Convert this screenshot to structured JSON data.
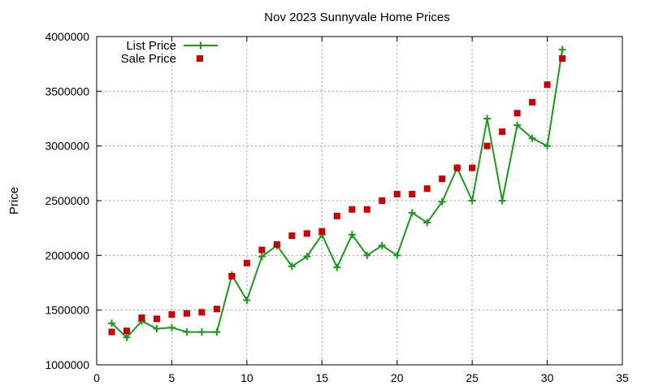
{
  "chart_data": {
    "type": "line",
    "title": "Nov 2023 Sunnyvale Home Prices",
    "xlabel": "",
    "ylabel": "Price",
    "xlim": [
      0,
      35
    ],
    "ylim": [
      1000000,
      4000000
    ],
    "xticks": [
      0,
      5,
      10,
      15,
      20,
      25,
      30,
      35
    ],
    "yticks": [
      1000000,
      1500000,
      2000000,
      2500000,
      3000000,
      3500000,
      4000000
    ],
    "grid": true,
    "legend_position": "top-left",
    "series": [
      {
        "name": "List Price",
        "style": "line+plus-marker",
        "color": "#1a9a1a",
        "x": [
          1,
          2,
          3,
          4,
          5,
          6,
          7,
          8,
          9,
          10,
          11,
          12,
          13,
          14,
          15,
          16,
          17,
          18,
          19,
          20,
          21,
          22,
          23,
          24,
          25,
          26,
          27,
          28,
          29,
          30,
          31
        ],
        "y": [
          1380000,
          1250000,
          1400000,
          1330000,
          1340000,
          1300000,
          1300000,
          1300000,
          1820000,
          1590000,
          1990000,
          2090000,
          1900000,
          1990000,
          2190000,
          1890000,
          2190000,
          2000000,
          2090000,
          2000000,
          2390000,
          2300000,
          2490000,
          2800000,
          2500000,
          3250000,
          2500000,
          3190000,
          3070000,
          3000000,
          3880000
        ]
      },
      {
        "name": "Sale Price",
        "style": "square-marker",
        "color": "#cc0000",
        "x": [
          1,
          2,
          3,
          4,
          5,
          6,
          7,
          8,
          9,
          10,
          11,
          12,
          13,
          14,
          15,
          16,
          17,
          18,
          19,
          20,
          21,
          22,
          23,
          24,
          25,
          26,
          27,
          28,
          29,
          30,
          31
        ],
        "y": [
          1300000,
          1310000,
          1430000,
          1420000,
          1460000,
          1470000,
          1480000,
          1510000,
          1810000,
          1930000,
          2050000,
          2100000,
          2180000,
          2200000,
          2220000,
          2360000,
          2420000,
          2420000,
          2500000,
          2560000,
          2560000,
          2610000,
          2700000,
          2800000,
          2800000,
          3000000,
          3130000,
          3300000,
          3400000,
          3560000,
          3800000
        ]
      }
    ]
  }
}
